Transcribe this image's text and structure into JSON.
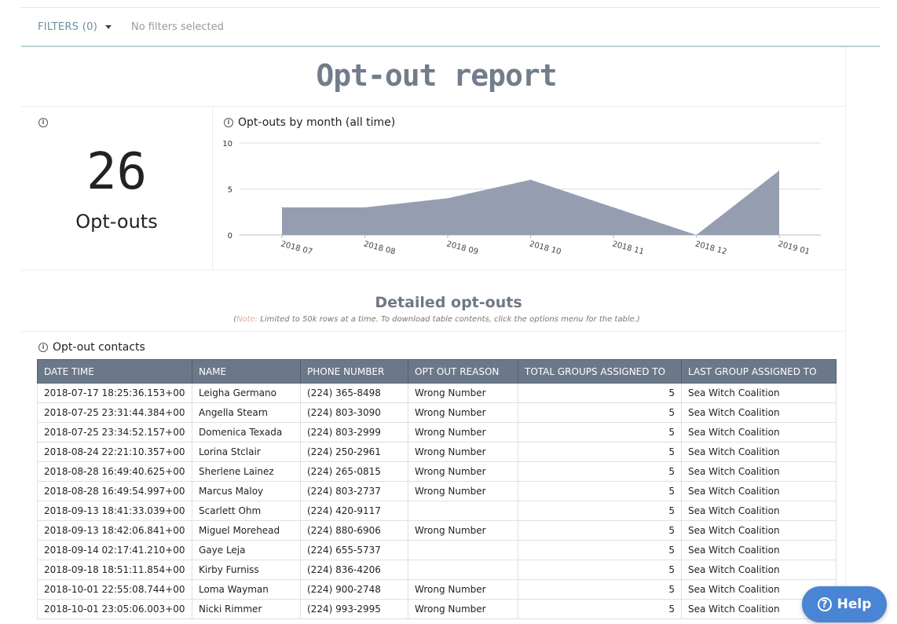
{
  "filters": {
    "label": "FILTERS",
    "count": "(0)",
    "status": "No filters selected"
  },
  "page_title": "Opt-out report",
  "kpi": {
    "value": "26",
    "label": "Opt-outs"
  },
  "chart_title": "Opt-outs by month (all time)",
  "chart_data": {
    "type": "area",
    "categories": [
      "2018 07",
      "2018 08",
      "2018 09",
      "2018 10",
      "2018 11",
      "2018 12",
      "2019 01"
    ],
    "values": [
      3,
      3,
      4,
      6,
      3,
      0,
      7
    ],
    "title": "Opt-outs by month (all time)",
    "xlabel": "",
    "ylabel": "",
    "ylim": [
      0,
      10
    ],
    "yticks": [
      0,
      5,
      10
    ],
    "grid": true,
    "color": "#959eb1"
  },
  "section_title": "Detailed opt-outs",
  "note": {
    "open": "(",
    "label": "Note:",
    "text": " Limited to 50k rows at a time. To download table contents, click the options menu for the table.)"
  },
  "table_title": "Opt-out contacts",
  "table": {
    "columns": [
      "DATE TIME",
      "NAME",
      "PHONE NUMBER",
      "OPT OUT REASON",
      "TOTAL GROUPS ASSIGNED TO",
      "LAST GROUP ASSIGNED TO"
    ],
    "rows": [
      [
        "2018-07-17 18:25:36.153+00",
        "Leigha Germano",
        "(224) 365-8498",
        "Wrong Number",
        "5",
        "Sea Witch Coalition"
      ],
      [
        "2018-07-25 23:31:44.384+00",
        "Angella Stearn",
        "(224) 803-3090",
        "Wrong Number",
        "5",
        "Sea Witch Coalition"
      ],
      [
        "2018-07-25 23:34:52.157+00",
        "Domenica Texada",
        "(224) 803-2999",
        "Wrong Number",
        "5",
        "Sea Witch Coalition"
      ],
      [
        "2018-08-24 22:21:10.357+00",
        "Lorina Stclair",
        "(224) 250-2961",
        "Wrong Number",
        "5",
        "Sea Witch Coalition"
      ],
      [
        "2018-08-28 16:49:40.625+00",
        "Sherlene Lainez",
        "(224) 265-0815",
        "Wrong Number",
        "5",
        "Sea Witch Coalition"
      ],
      [
        "2018-08-28 16:49:54.997+00",
        "Marcus Maloy",
        "(224) 803-2737",
        "Wrong Number",
        "5",
        "Sea Witch Coalition"
      ],
      [
        "2018-09-13 18:41:33.039+00",
        "Scarlett Ohm",
        "(224) 420-9117",
        "",
        "5",
        "Sea Witch Coalition"
      ],
      [
        "2018-09-13 18:42:06.841+00",
        "Miguel Morehead",
        "(224) 880-6906",
        "Wrong Number",
        "5",
        "Sea Witch Coalition"
      ],
      [
        "2018-09-14 02:17:41.210+00",
        "Gaye Leja",
        "(224) 655-5737",
        "",
        "5",
        "Sea Witch Coalition"
      ],
      [
        "2018-09-18 18:51:11.854+00",
        "Kirby Furniss",
        "(224) 836-4206",
        "",
        "5",
        "Sea Witch Coalition"
      ],
      [
        "2018-10-01 22:55:08.744+00",
        "Loma Wayman",
        "(224) 900-2748",
        "Wrong Number",
        "5",
        "Sea Witch Coalition"
      ],
      [
        "2018-10-01 23:05:06.003+00",
        "Nicki Rimmer",
        "(224) 993-2995",
        "Wrong Number",
        "5",
        "Sea Witch Coalition"
      ]
    ]
  },
  "help": {
    "label": "Help",
    "icon": "question-icon"
  }
}
